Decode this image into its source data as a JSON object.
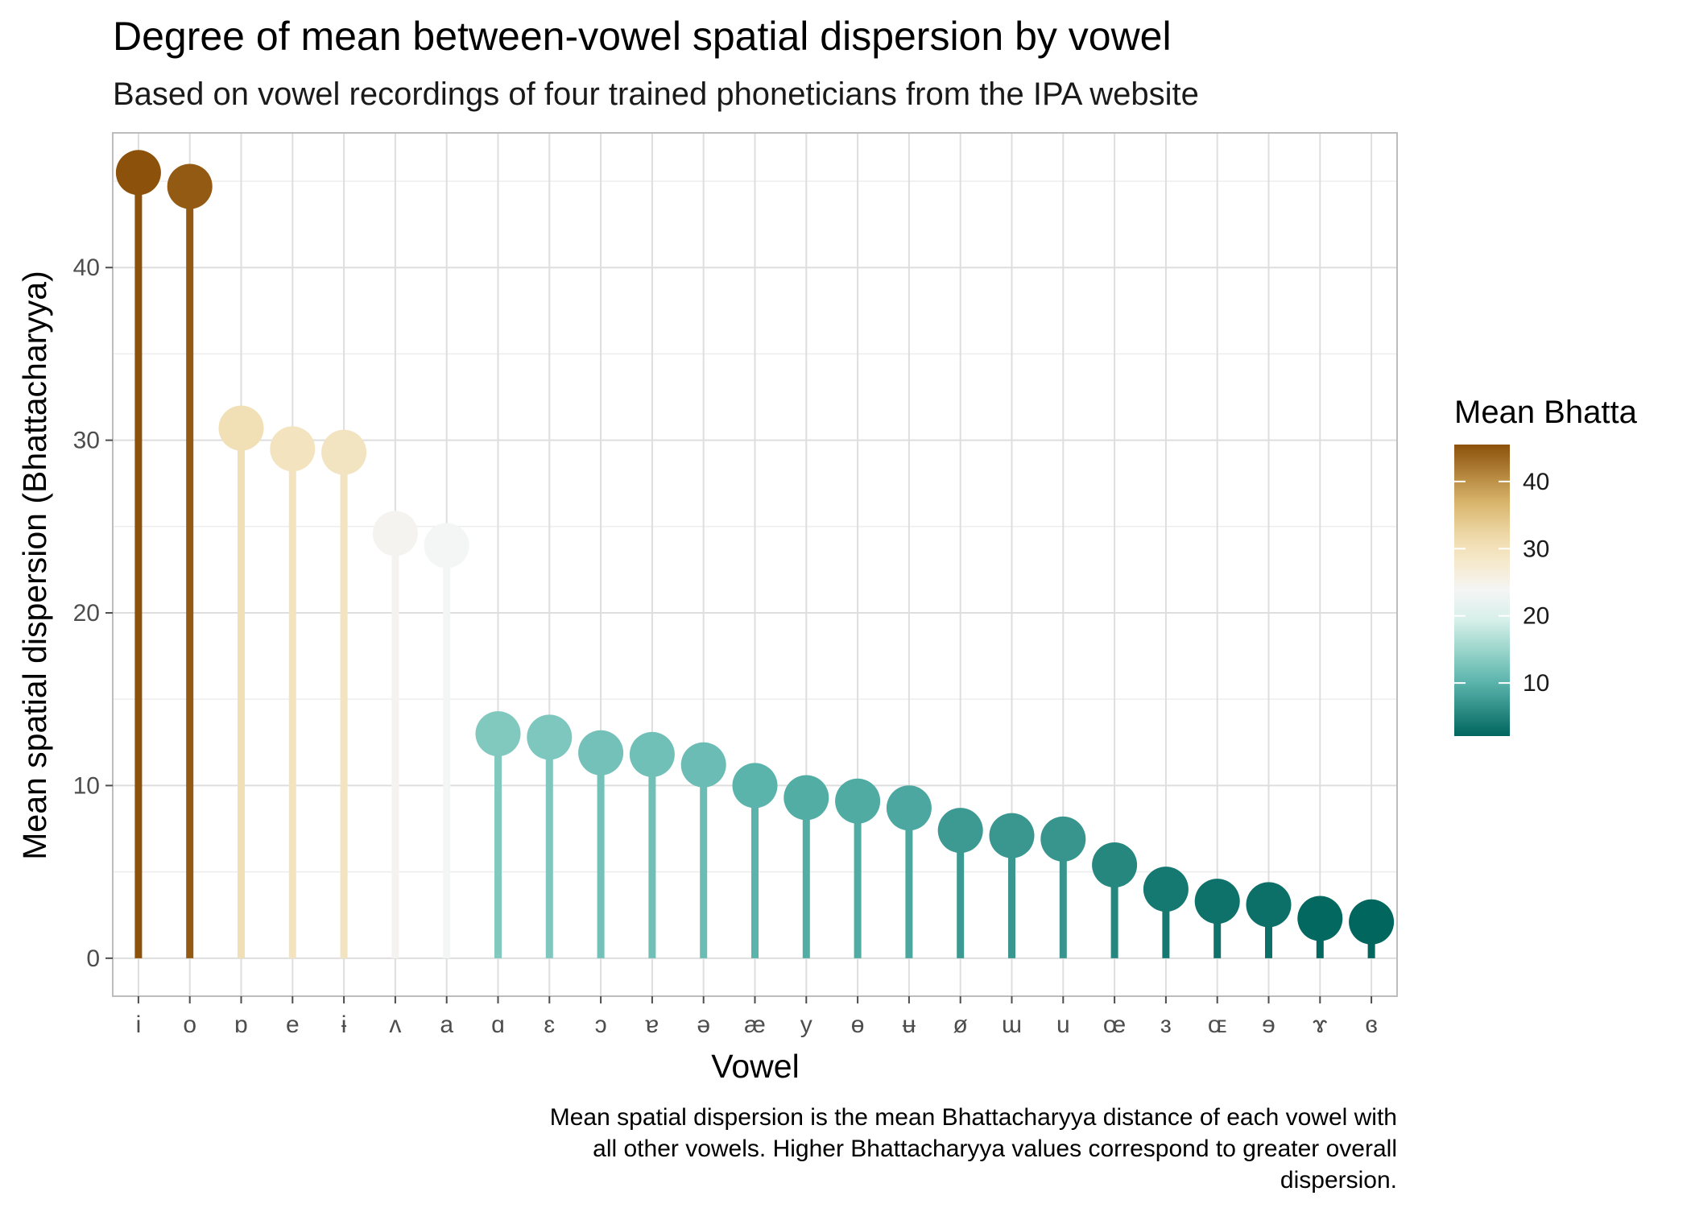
{
  "chart_data": {
    "type": "lollipop",
    "title": "Degree of mean between-vowel spatial dispersion by vowel",
    "subtitle": "Based on vowel recordings of four trained phoneticians from the IPA website",
    "xlabel": "Vowel",
    "ylabel": "Mean spatial dispersion (Bhattacharyya)",
    "caption": [
      "Mean spatial dispersion is the mean Bhattacharyya distance of each vowel with",
      "all other vowels. Higher Bhattacharyya values correspond to greater overall",
      "dispersion."
    ],
    "categories": [
      "i",
      "o",
      "ɒ",
      "e",
      "ɨ",
      "ʌ",
      "a",
      "ɑ",
      "ɛ",
      "ɔ",
      "ɐ",
      "ə",
      "æ",
      "y",
      "ɵ",
      "ʉ",
      "ø",
      "ɯ",
      "u",
      "œ",
      "ɜ",
      "ɶ",
      "ɘ",
      "ɤ",
      "ɞ"
    ],
    "values": [
      45.5,
      44.7,
      30.7,
      29.5,
      29.3,
      24.6,
      23.9,
      13.0,
      12.8,
      11.9,
      11.8,
      11.2,
      10.0,
      9.3,
      9.1,
      8.7,
      7.4,
      7.1,
      6.9,
      5.4,
      4.0,
      3.3,
      3.1,
      2.3,
      2.1
    ],
    "ylim": [
      -2.2,
      47.8
    ],
    "yticks": [
      0,
      10,
      20,
      30,
      40
    ],
    "grid": true,
    "legend": {
      "title": "Mean Bhatta",
      "position": "right",
      "ticks": [
        10,
        20,
        30,
        40
      ],
      "range": [
        2.1,
        45.5
      ]
    },
    "palette": [
      {
        "v": 2.1,
        "color": "#01665e"
      },
      {
        "v": 10.0,
        "color": "#5ab4ac"
      },
      {
        "v": 16.0,
        "color": "#a8dcd2"
      },
      {
        "v": 19.5,
        "color": "#d9f0ea"
      },
      {
        "v": 24.0,
        "color": "#f5f5f5"
      },
      {
        "v": 27.5,
        "color": "#f6ebd0"
      },
      {
        "v": 31.5,
        "color": "#f0dcae"
      },
      {
        "v": 37.0,
        "color": "#d8b46a"
      },
      {
        "v": 45.5,
        "color": "#8c510a"
      }
    ]
  }
}
